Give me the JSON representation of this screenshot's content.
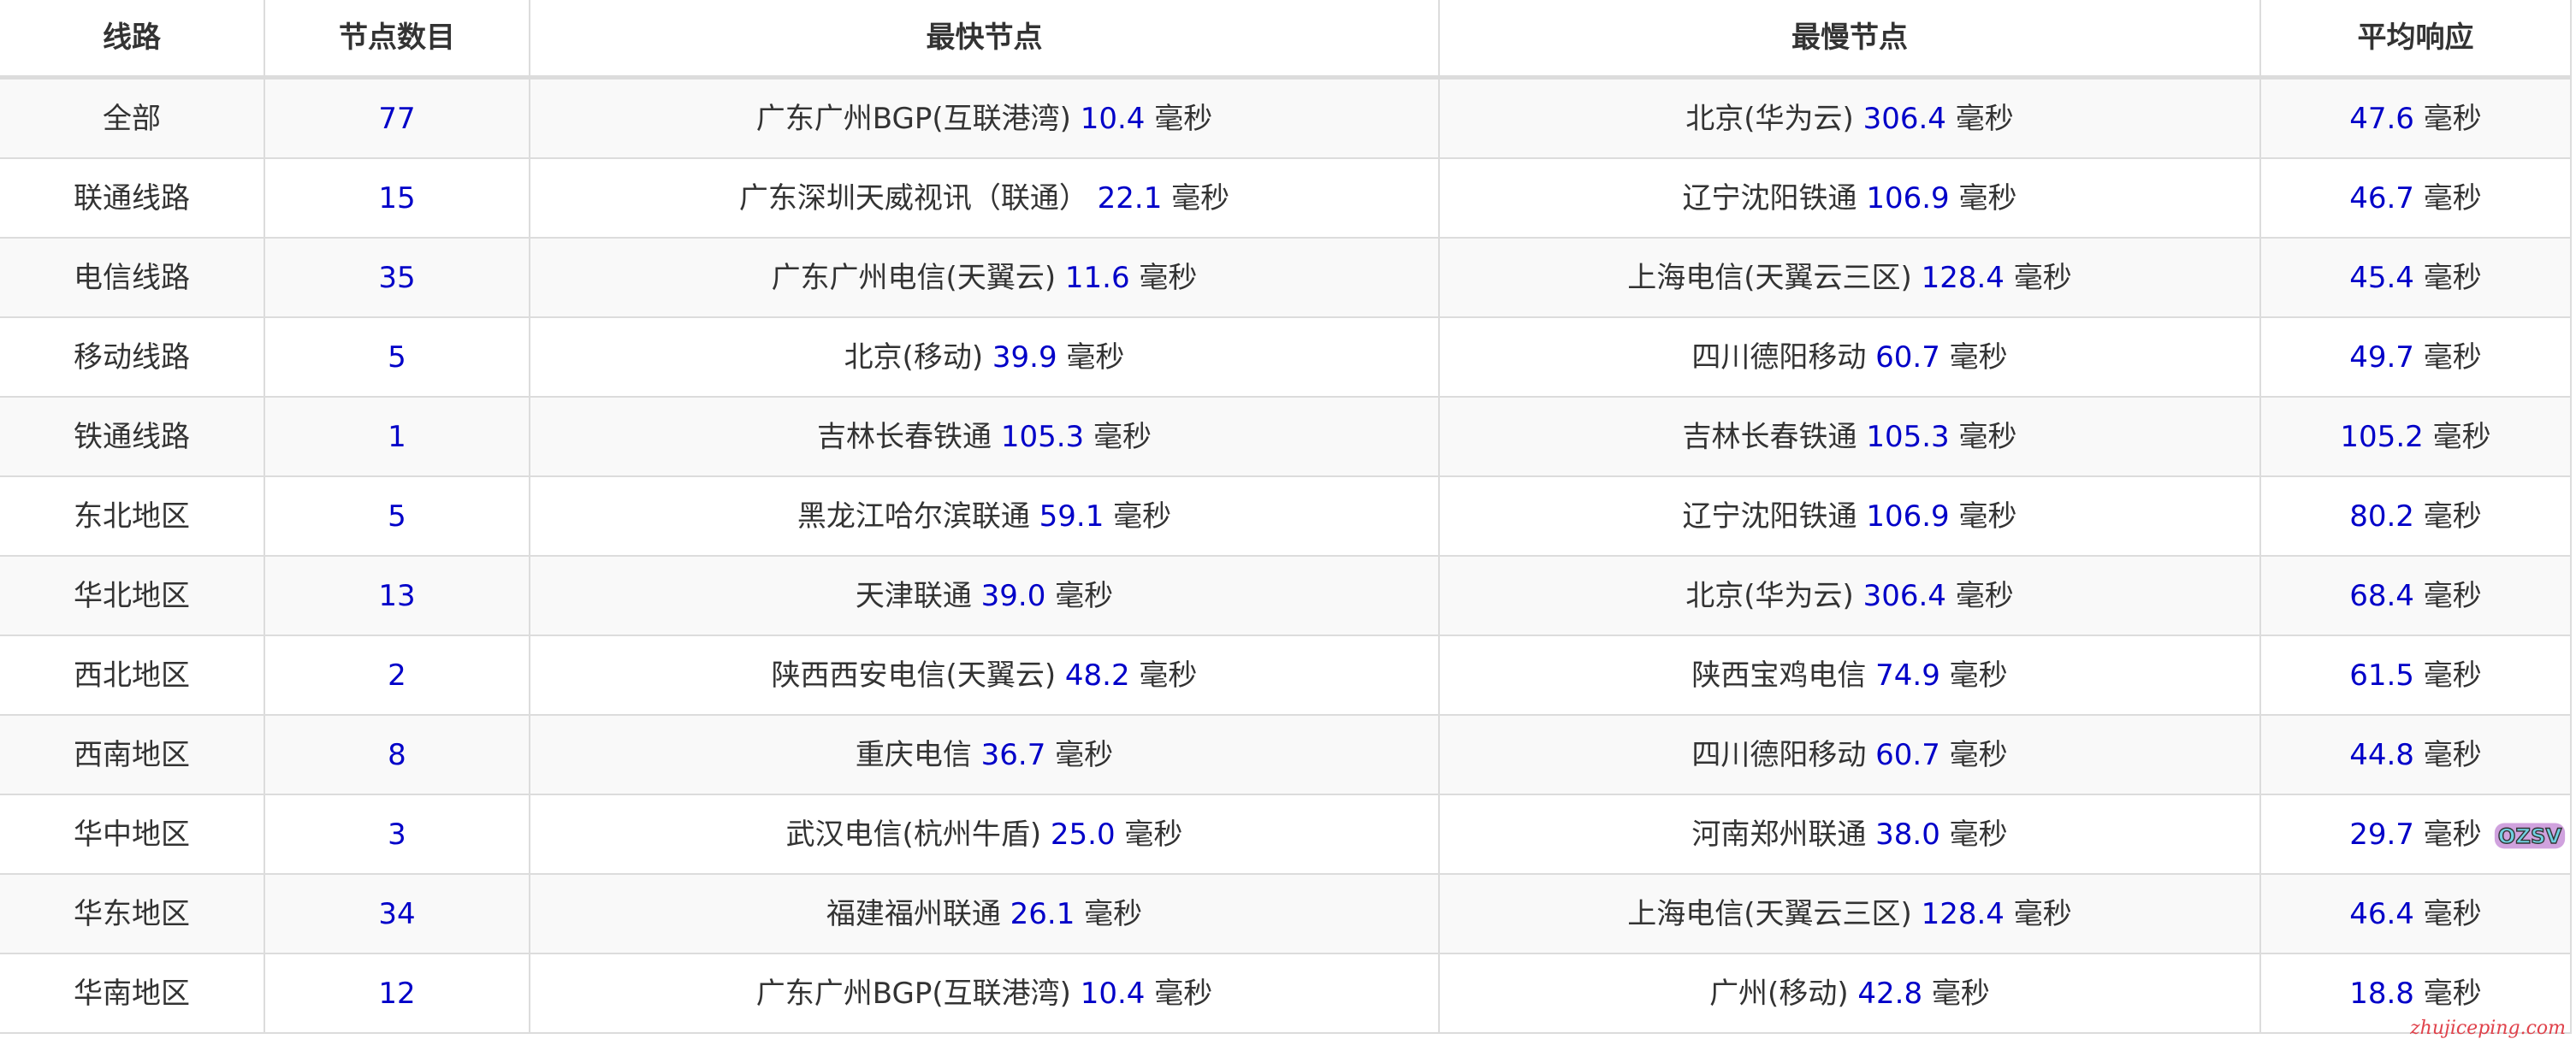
{
  "headers": [
    "线路",
    "节点数目",
    "最快节点",
    "最慢节点",
    "平均响应"
  ],
  "unit": "毫秒",
  "rows": [
    {
      "line": "全部",
      "count": "77",
      "fast_name": "广东广州BGP(互联港湾)",
      "fast_ms": "10.4",
      "slow_name": "北京(华为云)",
      "slow_ms": "306.4",
      "avg_ms": "47.6"
    },
    {
      "line": "联通线路",
      "count": "15",
      "fast_name": "广东深圳天威视讯（联通）",
      "fast_ms": "22.1",
      "slow_name": "辽宁沈阳铁通",
      "slow_ms": "106.9",
      "avg_ms": "46.7"
    },
    {
      "line": "电信线路",
      "count": "35",
      "fast_name": "广东广州电信(天翼云)",
      "fast_ms": "11.6",
      "slow_name": "上海电信(天翼云三区)",
      "slow_ms": "128.4",
      "avg_ms": "45.4"
    },
    {
      "line": "移动线路",
      "count": "5",
      "fast_name": "北京(移动)",
      "fast_ms": "39.9",
      "slow_name": "四川德阳移动",
      "slow_ms": "60.7",
      "avg_ms": "49.7"
    },
    {
      "line": "铁通线路",
      "count": "1",
      "fast_name": "吉林长春铁通",
      "fast_ms": "105.3",
      "slow_name": "吉林长春铁通",
      "slow_ms": "105.3",
      "avg_ms": "105.2"
    },
    {
      "line": "东北地区",
      "count": "5",
      "fast_name": "黑龙江哈尔滨联通",
      "fast_ms": "59.1",
      "slow_name": "辽宁沈阳铁通",
      "slow_ms": "106.9",
      "avg_ms": "80.2"
    },
    {
      "line": "华北地区",
      "count": "13",
      "fast_name": "天津联通",
      "fast_ms": "39.0",
      "slow_name": "北京(华为云)",
      "slow_ms": "306.4",
      "avg_ms": "68.4"
    },
    {
      "line": "西北地区",
      "count": "2",
      "fast_name": "陕西西安电信(天翼云)",
      "fast_ms": "48.2",
      "slow_name": "陕西宝鸡电信",
      "slow_ms": "74.9",
      "avg_ms": "61.5"
    },
    {
      "line": "西南地区",
      "count": "8",
      "fast_name": "重庆电信",
      "fast_ms": "36.7",
      "slow_name": "四川德阳移动",
      "slow_ms": "60.7",
      "avg_ms": "44.8"
    },
    {
      "line": "华中地区",
      "count": "3",
      "fast_name": "武汉电信(杭州牛盾)",
      "fast_ms": "25.0",
      "slow_name": "河南郑州联通",
      "slow_ms": "38.0",
      "avg_ms": "29.7"
    },
    {
      "line": "华东地区",
      "count": "34",
      "fast_name": "福建福州联通",
      "fast_ms": "26.1",
      "slow_name": "上海电信(天翼云三区)",
      "slow_ms": "128.4",
      "avg_ms": "46.4"
    },
    {
      "line": "华南地区",
      "count": "12",
      "fast_name": "广东广州BGP(互联港湾)",
      "fast_ms": "10.4",
      "slow_name": "广州(移动)",
      "slow_ms": "42.8",
      "avg_ms": "18.8"
    }
  ],
  "watermarks": {
    "logo": "OZSV",
    "site": "zhujiceping.com"
  },
  "colors": {
    "value": "#0000c8",
    "text": "#333333",
    "border": "#dcdcdc",
    "stripe": "#f9f9f9"
  }
}
